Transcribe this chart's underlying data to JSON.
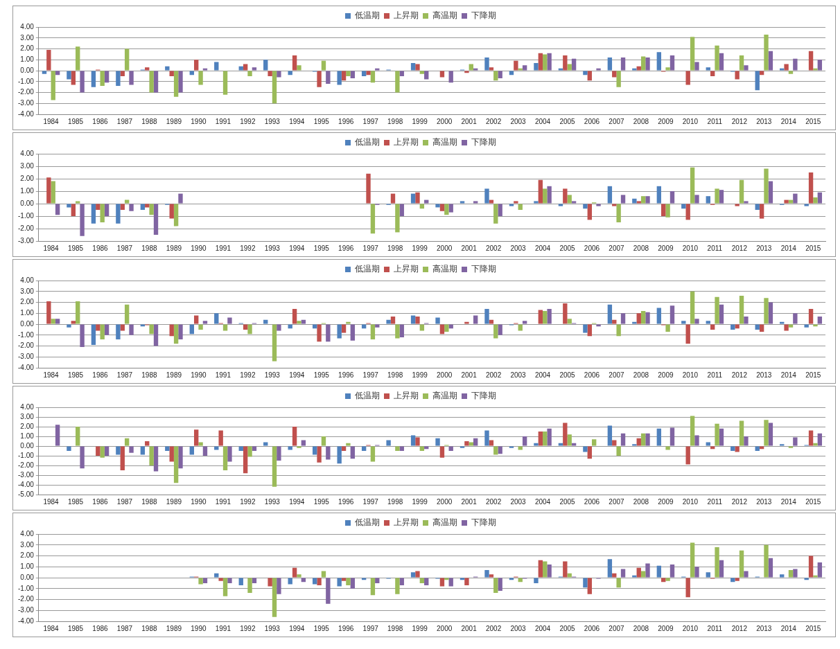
{
  "chart_data": [
    {
      "type": "bar",
      "legend": "top",
      "grid": "y",
      "categories": [
        "1984",
        "1985",
        "1986",
        "1987",
        "1988",
        "1989",
        "1990",
        "1991",
        "1992",
        "1993",
        "1994",
        "1995",
        "1996",
        "1997",
        "1998",
        "1999",
        "2000",
        "2001",
        "2002",
        "2003",
        "2004",
        "2005",
        "2006",
        "2007",
        "2008",
        "2009",
        "2010",
        "2011",
        "2012",
        "2013",
        "2014",
        "2015"
      ],
      "ylim": [
        -4,
        4
      ],
      "yticks": [
        {
          "value": -4,
          "label": "-4.00"
        },
        {
          "value": -3,
          "label": "-3.00"
        },
        {
          "value": -2,
          "label": "-2.00"
        },
        {
          "value": -1,
          "label": "-1.00"
        },
        {
          "value": 0,
          "label": "0.00"
        },
        {
          "value": 1,
          "label": "1.00"
        },
        {
          "value": 2,
          "label": "2.00"
        },
        {
          "value": 3,
          "label": "3.00"
        },
        {
          "value": 4,
          "label": "4.00"
        }
      ],
      "series": [
        {
          "name": "低温期",
          "color": "#4f81bd",
          "values": [
            -0.3,
            -0.8,
            -1.5,
            -1.4,
            0.1,
            0.4,
            -0.4,
            0.8,
            0.4,
            1.0,
            -0.4,
            -0.1,
            -1.3,
            -0.5,
            0.1,
            0.7,
            0.0,
            0.1,
            1.2,
            -0.4,
            0.7,
            0.2,
            -0.4,
            1.2,
            0.2,
            1.7,
            0.0,
            0.3,
            -0.1,
            -1.8,
            0.2,
            0.0
          ]
        },
        {
          "name": "上昇期",
          "color": "#c0504d",
          "values": [
            1.9,
            -1.3,
            0.1,
            -0.5,
            0.3,
            -0.5,
            1.0,
            0.0,
            0.6,
            -0.5,
            1.4,
            -1.5,
            -0.9,
            -0.4,
            0.0,
            0.6,
            -0.6,
            -0.2,
            0.3,
            0.9,
            1.6,
            1.4,
            -0.9,
            -0.6,
            0.4,
            -0.1,
            -1.3,
            -0.5,
            -0.8,
            -0.4,
            0.6,
            1.8
          ]
        },
        {
          "name": "高温期",
          "color": "#9bbb59",
          "values": [
            -2.7,
            2.2,
            -1.4,
            2.0,
            -2.0,
            -2.4,
            -1.3,
            -2.2,
            -0.5,
            -3.0,
            0.5,
            0.9,
            -0.5,
            -1.1,
            -2.0,
            -0.3,
            0.0,
            0.6,
            -0.9,
            0.2,
            1.5,
            0.6,
            0.0,
            -1.5,
            1.3,
            0.3,
            3.1,
            2.3,
            1.4,
            3.3,
            -0.3,
            0.2
          ]
        },
        {
          "name": "下降期",
          "color": "#8064a2",
          "values": [
            -0.4,
            -2.0,
            -1.1,
            -1.3,
            -2.0,
            -2.0,
            0.2,
            0.0,
            0.3,
            -0.6,
            0.0,
            -1.2,
            -0.7,
            0.2,
            -0.5,
            -0.8,
            -1.1,
            0.2,
            -0.7,
            0.5,
            1.6,
            1.1,
            0.2,
            1.2,
            1.2,
            1.4,
            0.8,
            1.6,
            0.5,
            1.8,
            1.1,
            1.0
          ]
        }
      ]
    },
    {
      "type": "bar",
      "legend": "top",
      "grid": "y",
      "categories": [
        "1984",
        "1985",
        "1986",
        "1987",
        "1988",
        "1989",
        "1990",
        "1991",
        "1992",
        "1993",
        "1994",
        "1995",
        "1996",
        "1997",
        "1998",
        "1999",
        "2000",
        "2001",
        "2002",
        "2003",
        "2004",
        "2005",
        "2006",
        "2007",
        "2008",
        "2009",
        "2010",
        "2011",
        "2012",
        "2013",
        "2014",
        "2015"
      ],
      "ylim": [
        -3,
        4
      ],
      "yticks": [
        {
          "value": -3,
          "label": "-3.00"
        },
        {
          "value": -2,
          "label": "-2.00"
        },
        {
          "value": -1,
          "label": "-1.00"
        },
        {
          "value": 0,
          "label": "0.00"
        },
        {
          "value": 1,
          "label": "1.00"
        },
        {
          "value": 2,
          "label": "2.00"
        },
        {
          "value": 3,
          "label": "3.00"
        },
        {
          "value": 4,
          "label": "4.00"
        }
      ],
      "series": [
        {
          "name": "低温期",
          "color": "#4f81bd",
          "values": [
            0.0,
            -0.3,
            -1.6,
            -1.6,
            -0.5,
            -0.1,
            null,
            null,
            null,
            null,
            null,
            null,
            null,
            0.0,
            -0.1,
            0.8,
            -0.3,
            0.2,
            1.2,
            -0.2,
            0.2,
            -0.2,
            -0.4,
            1.4,
            0.4,
            1.4,
            -0.4,
            0.6,
            0.0,
            -0.5,
            -0.1,
            -0.2
          ]
        },
        {
          "name": "上昇期",
          "color": "#c0504d",
          "values": [
            2.1,
            -1.0,
            -0.5,
            -0.5,
            -0.3,
            -1.2,
            null,
            null,
            null,
            null,
            null,
            null,
            null,
            2.4,
            0.8,
            0.9,
            -0.6,
            0.0,
            0.3,
            0.2,
            1.9,
            1.2,
            -1.3,
            -0.2,
            0.2,
            -1.0,
            -1.3,
            -0.1,
            -0.2,
            -1.2,
            0.3,
            2.5
          ]
        },
        {
          "name": "高温期",
          "color": "#9bbb59",
          "values": [
            1.8,
            0.2,
            -1.5,
            0.3,
            -0.9,
            -1.8,
            null,
            null,
            null,
            null,
            null,
            null,
            null,
            -2.4,
            -2.3,
            -0.4,
            -0.9,
            0.0,
            -1.6,
            -0.5,
            1.2,
            0.7,
            0.1,
            -1.5,
            0.6,
            -1.1,
            2.9,
            1.2,
            1.9,
            2.8,
            0.3,
            0.5
          ]
        },
        {
          "name": "下降期",
          "color": "#8064a2",
          "values": [
            -0.9,
            -2.6,
            -1.0,
            -0.6,
            -2.5,
            0.8,
            null,
            null,
            null,
            null,
            null,
            null,
            null,
            -0.1,
            -1.0,
            0.3,
            -0.7,
            0.2,
            -1.0,
            0.0,
            1.4,
            0.2,
            -0.2,
            0.7,
            0.6,
            1.0,
            0.7,
            1.1,
            0.2,
            1.8,
            0.8,
            0.9
          ]
        }
      ]
    },
    {
      "type": "bar",
      "legend": "top",
      "grid": "y",
      "categories": [
        "1984",
        "1985",
        "1986",
        "1987",
        "1988",
        "1989",
        "1990",
        "1991",
        "1992",
        "1993",
        "1994",
        "1995",
        "1996",
        "1997",
        "1998",
        "1999",
        "2000",
        "2001",
        "2002",
        "2003",
        "2004",
        "2005",
        "2006",
        "2007",
        "2008",
        "2009",
        "2010",
        "2011",
        "2012",
        "2013",
        "2014",
        "2015"
      ],
      "ylim": [
        -4,
        4
      ],
      "yticks": [
        {
          "value": -4,
          "label": "-4.00"
        },
        {
          "value": -3,
          "label": "-3.00"
        },
        {
          "value": -2,
          "label": "-2.00"
        },
        {
          "value": -1,
          "label": "-1.00"
        },
        {
          "value": 0,
          "label": "0.00"
        },
        {
          "value": 1,
          "label": "1.00"
        },
        {
          "value": 2,
          "label": "2.00"
        },
        {
          "value": 3,
          "label": "3.00"
        },
        {
          "value": 4,
          "label": "4.00"
        }
      ],
      "series": [
        {
          "name": "低温期",
          "color": "#4f81bd",
          "values": [
            0.0,
            -0.3,
            -1.9,
            -1.4,
            -0.2,
            0.0,
            -0.9,
            1.0,
            0.1,
            0.4,
            -0.4,
            -0.4,
            -1.3,
            -0.4,
            0.4,
            0.8,
            0.6,
            0.0,
            1.4,
            -0.1,
            0.0,
            0.0,
            -0.8,
            1.8,
            0.2,
            1.5,
            0.3,
            0.3,
            -0.5,
            -0.5,
            0.2,
            -0.3
          ]
        },
        {
          "name": "上昇期",
          "color": "#c0504d",
          "values": [
            2.1,
            0.3,
            -0.6,
            -0.6,
            -0.1,
            -1.1,
            0.8,
            0.1,
            -0.5,
            0.0,
            1.4,
            -1.6,
            -0.8,
            0.1,
            0.7,
            0.7,
            -0.9,
            0.2,
            0.4,
            0.1,
            1.3,
            1.9,
            -1.1,
            0.4,
            1.0,
            -0.1,
            -1.8,
            -0.5,
            -0.4,
            -0.7,
            -0.6,
            1.4
          ]
        },
        {
          "name": "高温期",
          "color": "#9bbb59",
          "values": [
            0.5,
            2.1,
            -1.4,
            1.8,
            -0.9,
            -1.8,
            -0.5,
            -0.6,
            -0.9,
            -3.4,
            0.3,
            0.1,
            0.2,
            -1.4,
            -1.3,
            -0.6,
            -0.7,
            0.0,
            -1.3,
            -0.6,
            1.2,
            0.5,
            0.1,
            -1.1,
            1.2,
            -0.7,
            3.0,
            2.5,
            2.6,
            2.4,
            -0.3,
            -0.2
          ]
        },
        {
          "name": "下降期",
          "color": "#8064a2",
          "values": [
            0.5,
            -2.1,
            -1.0,
            -1.0,
            -2.0,
            -1.4,
            0.3,
            0.6,
            0.1,
            -0.6,
            0.4,
            -1.6,
            -1.5,
            -0.3,
            -1.2,
            0.1,
            -0.4,
            0.8,
            -1.0,
            0.3,
            1.4,
            0.1,
            -0.2,
            1.0,
            1.1,
            1.7,
            0.5,
            1.8,
            0.7,
            2.0,
            1.0,
            0.7
          ]
        }
      ]
    },
    {
      "type": "bar",
      "legend": "top",
      "grid": "y",
      "categories": [
        "1984",
        "1985",
        "1986",
        "1987",
        "1988",
        "1989",
        "1990",
        "1991",
        "1992",
        "1993",
        "1994",
        "1995",
        "1996",
        "1997",
        "1998",
        "1999",
        "2000",
        "2001",
        "2002",
        "2003",
        "2004",
        "2005",
        "2006",
        "2007",
        "2008",
        "2009",
        "2010",
        "2011",
        "2012",
        "2013",
        "2014",
        "2015"
      ],
      "ylim": [
        -5,
        4
      ],
      "yticks": [
        {
          "value": -5,
          "label": "-5.00"
        },
        {
          "value": -4,
          "label": "-4.00"
        },
        {
          "value": -3,
          "label": "-3.00"
        },
        {
          "value": -2,
          "label": "-2.00"
        },
        {
          "value": -1,
          "label": "-1.00"
        },
        {
          "value": 0,
          "label": "0.00"
        },
        {
          "value": 1,
          "label": "1.00"
        },
        {
          "value": 2,
          "label": "2.00"
        },
        {
          "value": 3,
          "label": "3.00"
        },
        {
          "value": 4,
          "label": "4.00"
        }
      ],
      "series": [
        {
          "name": "低温期",
          "color": "#4f81bd",
          "values": [
            0.0,
            -0.5,
            0.0,
            -0.9,
            -0.9,
            -0.5,
            -0.9,
            -0.4,
            -0.5,
            0.4,
            -0.4,
            -0.9,
            -1.8,
            -0.5,
            0.6,
            1.1,
            0.8,
            -0.2,
            1.6,
            -0.2,
            0.3,
            0.3,
            -0.6,
            2.1,
            0.2,
            1.8,
            0.0,
            0.4,
            -0.5,
            -0.5,
            0.2,
            0.1
          ]
        },
        {
          "name": "上昇期",
          "color": "#c0504d",
          "values": [
            0.0,
            0.0,
            -1.0,
            -2.5,
            0.5,
            -1.6,
            1.7,
            1.6,
            -2.8,
            0.0,
            2.0,
            -1.7,
            -0.5,
            0.1,
            0.0,
            0.9,
            -1.2,
            0.5,
            0.6,
            0.0,
            1.5,
            2.4,
            -1.3,
            0.6,
            0.8,
            0.0,
            -1.9,
            -0.3,
            -0.6,
            -0.3,
            0.0,
            1.6
          ]
        },
        {
          "name": "高温期",
          "color": "#9bbb59",
          "values": [
            0.0,
            2.0,
            -1.2,
            0.8,
            -2.0,
            -3.8,
            0.4,
            -2.5,
            -1.1,
            -4.2,
            -0.2,
            1.0,
            0.3,
            -1.6,
            -0.5,
            -0.5,
            0.1,
            0.4,
            -0.9,
            -0.4,
            1.5,
            1.2,
            0.7,
            -1.0,
            1.3,
            -0.4,
            3.1,
            2.3,
            2.6,
            2.7,
            -0.2,
            0.3
          ]
        },
        {
          "name": "下降期",
          "color": "#8064a2",
          "values": [
            2.2,
            -2.3,
            -1.0,
            -0.7,
            -2.6,
            -2.3,
            -1.0,
            -1.6,
            -0.5,
            -1.5,
            0.6,
            -1.4,
            -1.3,
            0.1,
            -0.5,
            -0.3,
            -0.5,
            0.8,
            -0.8,
            1.0,
            1.8,
            0.3,
            0.0,
            1.3,
            1.3,
            1.9,
            1.1,
            1.8,
            1.0,
            2.4,
            0.9,
            1.3
          ]
        }
      ]
    },
    {
      "type": "bar",
      "legend": "top",
      "grid": "y",
      "categories": [
        "1984",
        "1985",
        "1986",
        "1987",
        "1988",
        "1989",
        "1990",
        "1991",
        "1992",
        "1993",
        "1994",
        "1995",
        "1996",
        "1997",
        "1998",
        "1999",
        "2000",
        "2001",
        "2002",
        "2003",
        "2004",
        "2005",
        "2006",
        "2007",
        "2008",
        "2009",
        "2010",
        "2011",
        "2012",
        "2013",
        "2014",
        "2015"
      ],
      "ylim": [
        -4,
        4
      ],
      "yticks": [
        {
          "value": -4,
          "label": "-4.00"
        },
        {
          "value": -3,
          "label": "-3.00"
        },
        {
          "value": -2,
          "label": "-2.00"
        },
        {
          "value": -1,
          "label": "-1.00"
        },
        {
          "value": 0,
          "label": "0.00"
        },
        {
          "value": 1,
          "label": "1.00"
        },
        {
          "value": 2,
          "label": "2.00"
        },
        {
          "value": 3,
          "label": "3.00"
        },
        {
          "value": 4,
          "label": "4.00"
        }
      ],
      "series": [
        {
          "name": "低温期",
          "color": "#4f81bd",
          "values": [
            null,
            null,
            null,
            null,
            null,
            null,
            0.1,
            0.4,
            -0.7,
            0.0,
            -0.6,
            -0.6,
            -0.8,
            -0.2,
            -0.1,
            0.5,
            -0.1,
            -0.2,
            0.7,
            -0.2,
            -0.5,
            0.1,
            -0.9,
            1.7,
            0.2,
            1.1,
            0.1,
            0.5,
            -0.4,
            0.1,
            0.3,
            -0.2
          ]
        },
        {
          "name": "上昇期",
          "color": "#c0504d",
          "values": [
            null,
            null,
            null,
            null,
            null,
            null,
            0.1,
            -0.3,
            0.0,
            -0.8,
            0.9,
            -0.7,
            -0.3,
            0.0,
            0.0,
            0.6,
            -0.8,
            -0.7,
            0.3,
            0.1,
            1.6,
            1.5,
            -1.5,
            0.4,
            0.9,
            -0.4,
            -1.8,
            -0.1,
            -0.3,
            0.0,
            0.0,
            2.0
          ]
        },
        {
          "name": "高温期",
          "color": "#9bbb59",
          "values": [
            null,
            null,
            null,
            null,
            null,
            null,
            -0.6,
            -1.7,
            -1.4,
            -3.6,
            0.3,
            0.6,
            -0.7,
            -1.6,
            -1.5,
            -0.5,
            -0.2,
            0.0,
            -1.4,
            -0.4,
            1.5,
            0.4,
            0.0,
            -0.9,
            0.6,
            -0.3,
            3.2,
            2.8,
            2.5,
            3.0,
            0.7,
            0.2
          ]
        },
        {
          "name": "下降期",
          "color": "#8064a2",
          "values": [
            null,
            null,
            null,
            null,
            null,
            null,
            -0.5,
            -0.5,
            -0.5,
            -1.5,
            -0.4,
            -2.4,
            -1.0,
            -0.5,
            -0.7,
            -0.7,
            -0.8,
            0.1,
            -1.2,
            -0.1,
            1.2,
            0.1,
            -0.1,
            0.8,
            1.3,
            1.2,
            1.0,
            1.6,
            0.6,
            1.8,
            0.8,
            1.4
          ]
        }
      ]
    }
  ]
}
